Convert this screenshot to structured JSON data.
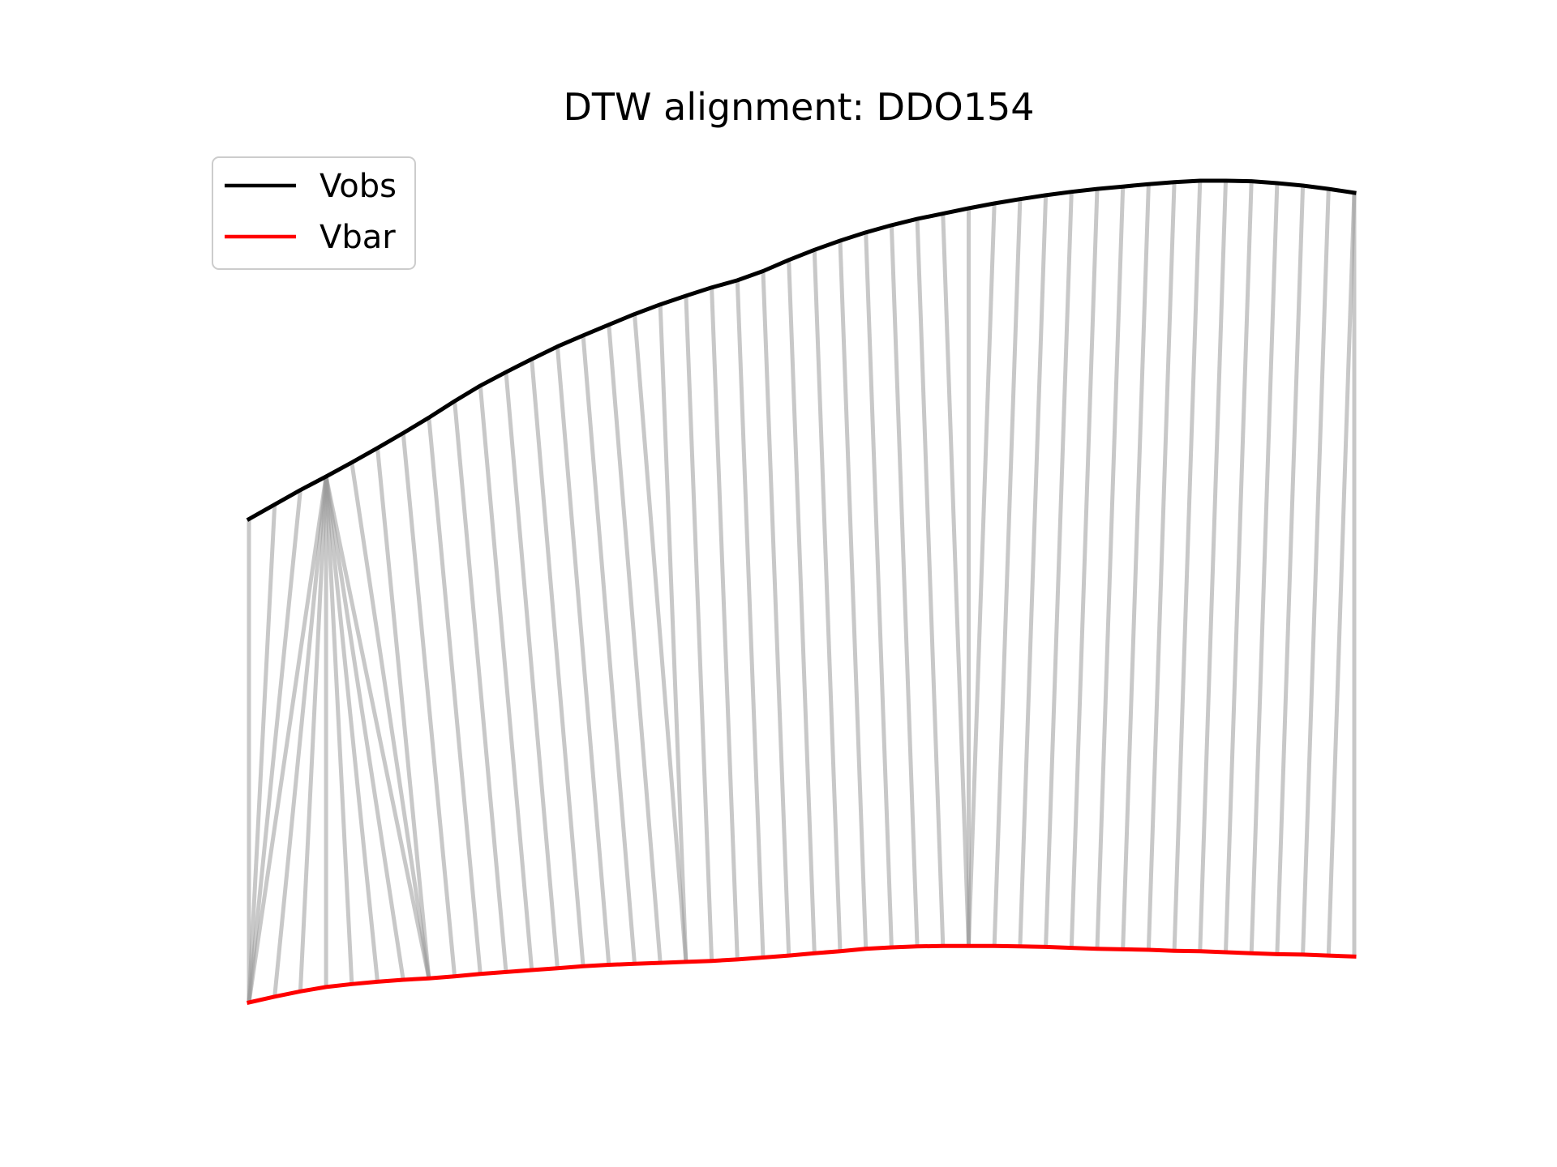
{
  "chart_data": {
    "type": "line",
    "title": "DTW alignment: DDO154",
    "xlabel": "",
    "ylabel": "",
    "axes_visible": false,
    "grid": false,
    "legend_placement": "top-left",
    "series": [
      {
        "name": "Vobs",
        "color": "#000000",
        "values": [
          0.0,
          0.03,
          0.06,
          0.088,
          0.117,
          0.147,
          0.178,
          0.21,
          0.244,
          0.276,
          0.304,
          0.331,
          0.357,
          0.38,
          0.402,
          0.424,
          0.444,
          0.462,
          0.479,
          0.494,
          0.513,
          0.536,
          0.557,
          0.576,
          0.593,
          0.608,
          0.621,
          0.632,
          0.643,
          0.653,
          0.662,
          0.67,
          0.677,
          0.683,
          0.688,
          0.693,
          0.697,
          0.7,
          0.7,
          0.699,
          0.695,
          0.69,
          0.683,
          0.675
        ]
      },
      {
        "name": "Vbar",
        "color": "#ff0000",
        "values": [
          -1.0,
          -0.988,
          -0.977,
          -0.968,
          -0.962,
          -0.957,
          -0.953,
          -0.95,
          -0.946,
          -0.941,
          -0.937,
          -0.933,
          -0.929,
          -0.925,
          -0.922,
          -0.92,
          -0.918,
          -0.916,
          -0.914,
          -0.911,
          -0.907,
          -0.903,
          -0.898,
          -0.894,
          -0.889,
          -0.886,
          -0.884,
          -0.883,
          -0.883,
          -0.883,
          -0.884,
          -0.885,
          -0.887,
          -0.889,
          -0.89,
          -0.891,
          -0.893,
          -0.894,
          -0.896,
          -0.898,
          -0.9,
          -0.901,
          -0.903,
          -0.905
        ]
      }
    ],
    "warping_path": [
      [
        0,
        0
      ],
      [
        1,
        0
      ],
      [
        2,
        0
      ],
      [
        3,
        0
      ],
      [
        3,
        1
      ],
      [
        3,
        2
      ],
      [
        3,
        3
      ],
      [
        3,
        4
      ],
      [
        3,
        5
      ],
      [
        3,
        6
      ],
      [
        3,
        7
      ],
      [
        4,
        7
      ],
      [
        5,
        7
      ],
      [
        6,
        8
      ],
      [
        7,
        9
      ],
      [
        8,
        10
      ],
      [
        9,
        11
      ],
      [
        10,
        12
      ],
      [
        11,
        13
      ],
      [
        12,
        14
      ],
      [
        13,
        15
      ],
      [
        14,
        16
      ],
      [
        15,
        17
      ],
      [
        16,
        17
      ],
      [
        17,
        18
      ],
      [
        18,
        19
      ],
      [
        19,
        20
      ],
      [
        20,
        21
      ],
      [
        21,
        22
      ],
      [
        22,
        23
      ],
      [
        23,
        24
      ],
      [
        24,
        25
      ],
      [
        25,
        26
      ],
      [
        26,
        27
      ],
      [
        27,
        28
      ],
      [
        28,
        28
      ],
      [
        29,
        28
      ],
      [
        30,
        29
      ],
      [
        31,
        30
      ],
      [
        32,
        31
      ],
      [
        33,
        32
      ],
      [
        34,
        33
      ],
      [
        35,
        34
      ],
      [
        36,
        35
      ],
      [
        37,
        36
      ],
      [
        38,
        37
      ],
      [
        39,
        38
      ],
      [
        40,
        39
      ],
      [
        41,
        40
      ],
      [
        42,
        41
      ],
      [
        43,
        42
      ],
      [
        43,
        43
      ]
    ],
    "legend": [
      "Vobs",
      "Vbar"
    ]
  }
}
